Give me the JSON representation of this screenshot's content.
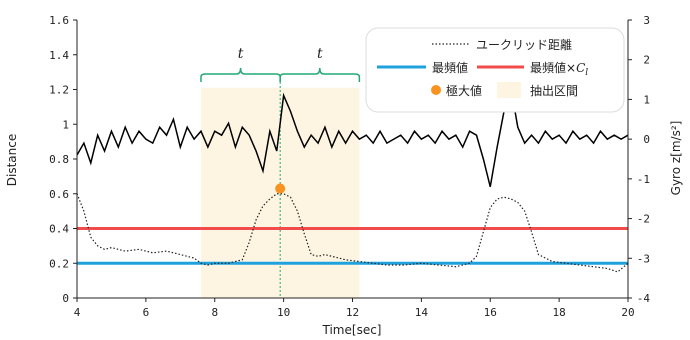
{
  "chart_data": {
    "type": "line",
    "xlabel": "Time[sec]",
    "ylabel_left": "Distance",
    "ylabel_right": "Gyro z[m/s²]",
    "xlim": [
      4,
      20
    ],
    "ylim_left": [
      0,
      1.6
    ],
    "ylim_right": [
      -4,
      3
    ],
    "x_ticks": [
      "4",
      "6",
      "8",
      "10",
      "12",
      "14",
      "16",
      "18",
      "20"
    ],
    "y_left_ticks": [
      "0",
      "0.2",
      "0.4",
      "0.6",
      "0.8",
      "1",
      "1.2",
      "1.4",
      "1.6"
    ],
    "y_right_ticks": [
      "-4",
      "-3",
      "-2",
      "-1",
      "0",
      "1",
      "2",
      "3"
    ],
    "grid": false,
    "legend_position": "top-right",
    "colors": {
      "distance": "#222222",
      "gyro": "#000000",
      "mode": "#1ea1dc",
      "mode_c": "#f24b4b",
      "maximum": "#f7931e",
      "extract_fill": "#fdf5e2",
      "brace": "#23a873",
      "center_line": "#23a873"
    },
    "legend": {
      "euclid": "ユークリッド距離",
      "mode": "最頻値",
      "mode_c": "最頻値×",
      "mode_c_sym": "C",
      "mode_c_sub": "l",
      "max": "極大値",
      "extract": "抽出区間"
    },
    "t_label": "t",
    "mode_value": 0.2,
    "mode_c_value": 0.4,
    "maximum_point": {
      "x": 9.9,
      "y": 0.63
    },
    "extract_range": [
      7.6,
      12.2
    ],
    "gyro_series": {
      "axis": "right",
      "x": [
        4.0,
        4.2,
        4.4,
        4.6,
        4.8,
        5.0,
        5.2,
        5.4,
        5.6,
        5.8,
        6.0,
        6.2,
        6.4,
        6.6,
        6.8,
        7.0,
        7.2,
        7.4,
        7.6,
        7.8,
        8.0,
        8.2,
        8.4,
        8.6,
        8.8,
        9.0,
        9.2,
        9.4,
        9.6,
        9.8,
        10.0,
        10.2,
        10.4,
        10.6,
        10.8,
        11.0,
        11.2,
        11.4,
        11.6,
        11.8,
        12.0,
        12.2,
        12.4,
        12.6,
        12.8,
        13.0,
        13.2,
        13.4,
        13.6,
        13.8,
        14.0,
        14.2,
        14.4,
        14.6,
        14.8,
        15.0,
        15.2,
        15.4,
        15.6,
        15.8,
        16.0,
        16.2,
        16.4,
        16.6,
        16.8,
        17.0,
        17.2,
        17.4,
        17.6,
        17.8,
        18.0,
        18.2,
        18.4,
        18.6,
        18.8,
        19.0,
        19.2,
        19.4,
        19.6,
        19.8,
        20.0
      ],
      "y": [
        -0.4,
        -0.1,
        -0.6,
        0.1,
        -0.3,
        0.2,
        -0.2,
        0.3,
        -0.1,
        0.2,
        0.0,
        -0.1,
        0.3,
        0.1,
        0.5,
        -0.2,
        0.3,
        0.0,
        0.2,
        -0.2,
        0.2,
        0.1,
        0.4,
        -0.2,
        0.3,
        0.1,
        -0.3,
        -0.8,
        0.2,
        -0.3,
        1.1,
        0.7,
        0.2,
        -0.2,
        0.1,
        -0.1,
        0.3,
        -0.2,
        0.2,
        -0.1,
        0.2,
        0.0,
        0.1,
        -0.1,
        0.2,
        -0.1,
        0.0,
        0.1,
        -0.1,
        0.2,
        0.0,
        0.1,
        -0.1,
        0.2,
        0.0,
        0.1,
        -0.2,
        0.2,
        0.1,
        -0.5,
        -1.2,
        -0.2,
        0.7,
        1.3,
        0.3,
        -0.1,
        0.1,
        -0.1,
        0.2,
        0.0,
        0.1,
        -0.1,
        0.2,
        0.0,
        0.1,
        -0.1,
        0.2,
        0.0,
        0.1,
        0.0,
        0.1
      ]
    },
    "distance_series": {
      "axis": "left",
      "x": [
        4.0,
        4.2,
        4.4,
        4.6,
        4.8,
        5.0,
        5.4,
        5.8,
        6.2,
        6.6,
        7.0,
        7.4,
        7.6,
        7.8,
        8.0,
        8.4,
        8.8,
        9.0,
        9.2,
        9.4,
        9.6,
        9.8,
        10.0,
        10.2,
        10.4,
        10.6,
        10.8,
        11.0,
        11.2,
        11.4,
        11.8,
        12.2,
        12.6,
        13.0,
        13.5,
        14.0,
        14.5,
        15.0,
        15.4,
        15.6,
        15.8,
        16.0,
        16.2,
        16.4,
        16.6,
        16.8,
        17.0,
        17.2,
        17.4,
        17.8,
        18.2,
        18.6,
        19.0,
        19.4,
        19.7,
        20.0
      ],
      "y": [
        0.6,
        0.5,
        0.35,
        0.3,
        0.28,
        0.29,
        0.27,
        0.28,
        0.26,
        0.27,
        0.25,
        0.23,
        0.2,
        0.19,
        0.2,
        0.2,
        0.22,
        0.32,
        0.45,
        0.53,
        0.57,
        0.6,
        0.6,
        0.58,
        0.5,
        0.37,
        0.25,
        0.24,
        0.25,
        0.24,
        0.22,
        0.21,
        0.2,
        0.19,
        0.19,
        0.2,
        0.19,
        0.18,
        0.2,
        0.24,
        0.38,
        0.52,
        0.57,
        0.58,
        0.57,
        0.55,
        0.5,
        0.38,
        0.25,
        0.21,
        0.2,
        0.19,
        0.18,
        0.17,
        0.15,
        0.2
      ]
    }
  }
}
